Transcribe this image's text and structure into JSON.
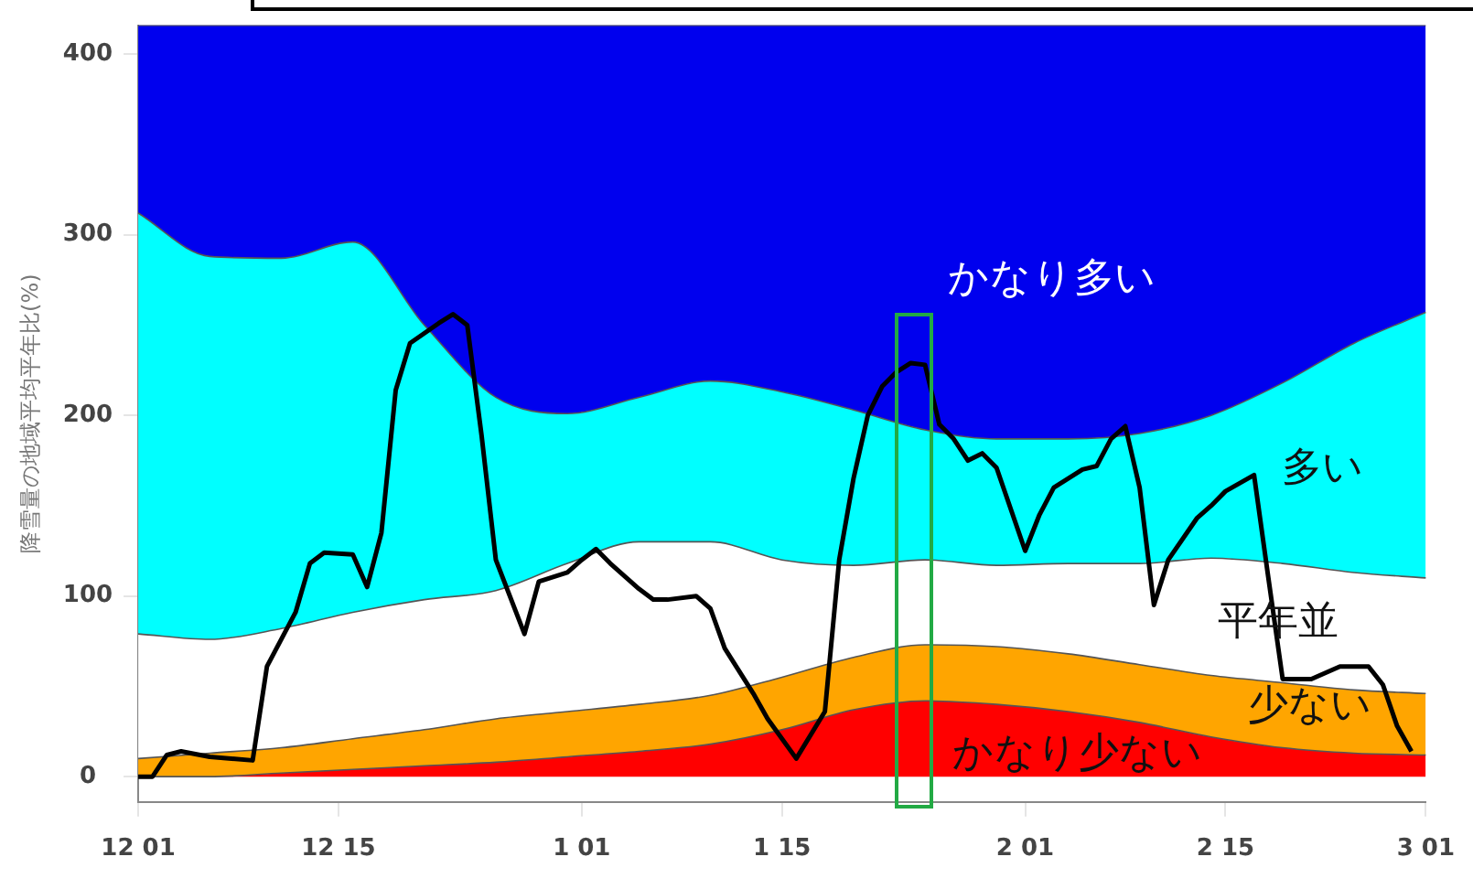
{
  "chart_data": {
    "type": "area",
    "stacked": true,
    "ylabel": "降雪量の地域平均平年比(%)",
    "categories": [
      "12 01",
      null,
      null,
      null,
      null,
      null,
      null,
      null,
      null,
      null,
      null,
      null,
      null,
      null,
      "12 15",
      null,
      null,
      null,
      null,
      null,
      null,
      null,
      null,
      null,
      null,
      null,
      null,
      null,
      null,
      null,
      null,
      "1 01",
      null,
      null,
      null,
      null,
      null,
      null,
      null,
      null,
      null,
      null,
      null,
      null,
      null,
      "1 15",
      null,
      null,
      null,
      null,
      null,
      null,
      null,
      null,
      null,
      null,
      null,
      null,
      null,
      null,
      null,
      null,
      "2 01",
      null,
      null,
      null,
      null,
      null,
      null,
      null,
      null,
      null,
      null,
      null,
      null,
      null,
      "2 15",
      null,
      null,
      null,
      null,
      null,
      null,
      null,
      null,
      null,
      null,
      null,
      null,
      null,
      "3 01"
    ],
    "ylim": [
      -14,
      416
    ],
    "yticks": [
      0,
      100,
      200,
      300,
      400
    ],
    "grid": false,
    "legend": false,
    "series": [
      {
        "name": "かなり少ない",
        "color": "#ff0000",
        "values": [
          0,
          null,
          null,
          null,
          null,
          0,
          null,
          null,
          null,
          null,
          2,
          null,
          null,
          null,
          null,
          4,
          null,
          null,
          null,
          null,
          6,
          null,
          null,
          null,
          null,
          8,
          null,
          null,
          null,
          null,
          11,
          null,
          null,
          null,
          null,
          14,
          null,
          null,
          null,
          null,
          18,
          null,
          null,
          null,
          null,
          26,
          null,
          null,
          null,
          null,
          37,
          null,
          null,
          null,
          null,
          42,
          null,
          null,
          null,
          null,
          40,
          null,
          null,
          null,
          null,
          36,
          null,
          null,
          null,
          null,
          30,
          null,
          null,
          null,
          null,
          22,
          null,
          null,
          null,
          null,
          16,
          null,
          null,
          null,
          null,
          13,
          null,
          null,
          null,
          null,
          12
        ]
      },
      {
        "name": "少ない",
        "color": "#ffa500",
        "values": [
          10,
          null,
          null,
          null,
          null,
          13,
          null,
          null,
          null,
          null,
          14,
          null,
          null,
          null,
          null,
          17,
          null,
          null,
          null,
          null,
          20,
          null,
          null,
          null,
          null,
          24,
          null,
          null,
          null,
          null,
          25,
          null,
          null,
          null,
          null,
          26,
          null,
          null,
          null,
          null,
          27,
          null,
          null,
          null,
          null,
          29,
          null,
          null,
          null,
          null,
          29,
          null,
          null,
          null,
          null,
          31,
          null,
          null,
          null,
          null,
          32,
          null,
          null,
          null,
          null,
          32,
          null,
          null,
          null,
          null,
          32,
          null,
          null,
          null,
          null,
          34,
          null,
          null,
          null,
          null,
          36,
          null,
          null,
          null,
          null,
          35,
          null,
          null,
          null,
          null,
          34
        ]
      },
      {
        "name": "平年並",
        "color": "#ffffff",
        "values": [
          69,
          null,
          null,
          null,
          null,
          63,
          null,
          null,
          null,
          null,
          66,
          null,
          null,
          null,
          null,
          70,
          null,
          null,
          null,
          null,
          72,
          null,
          null,
          null,
          null,
          71,
          null,
          null,
          null,
          null,
          82,
          null,
          null,
          null,
          null,
          90,
          null,
          null,
          null,
          null,
          85,
          null,
          null,
          null,
          null,
          65,
          null,
          null,
          null,
          null,
          51,
          null,
          null,
          null,
          null,
          47,
          null,
          null,
          null,
          null,
          45,
          null,
          null,
          null,
          null,
          50,
          null,
          null,
          null,
          null,
          56,
          null,
          null,
          null,
          null,
          65,
          null,
          null,
          null,
          null,
          66,
          null,
          null,
          null,
          null,
          65,
          null,
          null,
          null,
          null,
          64
        ]
      },
      {
        "name": "多い",
        "color": "#00ffff",
        "values": [
          233,
          null,
          null,
          null,
          null,
          212,
          null,
          null,
          null,
          null,
          205,
          null,
          null,
          null,
          null,
          205,
          null,
          null,
          null,
          null,
          152,
          null,
          null,
          null,
          null,
          107,
          null,
          null,
          null,
          null,
          83,
          null,
          null,
          null,
          null,
          80,
          null,
          null,
          null,
          null,
          89,
          null,
          null,
          null,
          null,
          93,
          null,
          null,
          null,
          null,
          86,
          null,
          null,
          null,
          null,
          72,
          null,
          null,
          null,
          null,
          70,
          null,
          null,
          null,
          null,
          69,
          null,
          null,
          null,
          null,
          72,
          null,
          null,
          null,
          null,
          79,
          null,
          null,
          null,
          null,
          100,
          null,
          null,
          null,
          null,
          127,
          null,
          null,
          null,
          null,
          147
        ]
      },
      {
        "name": "かなり多い",
        "color": "#0000ee",
        "values": [
          104,
          null,
          null,
          null,
          null,
          128,
          null,
          null,
          null,
          null,
          129,
          null,
          null,
          null,
          null,
          120,
          null,
          null,
          null,
          null,
          166,
          null,
          null,
          null,
          null,
          206,
          null,
          null,
          null,
          null,
          215,
          null,
          null,
          null,
          null,
          206,
          null,
          null,
          null,
          null,
          197,
          null,
          null,
          null,
          null,
          203,
          null,
          null,
          null,
          null,
          213,
          null,
          null,
          null,
          null,
          224,
          null,
          null,
          null,
          null,
          229,
          null,
          null,
          null,
          null,
          229,
          null,
          null,
          null,
          null,
          226,
          null,
          null,
          null,
          null,
          216,
          null,
          null,
          null,
          null,
          198,
          null,
          null,
          null,
          null,
          176,
          null,
          null,
          null,
          null,
          159
        ]
      },
      {
        "type": "line",
        "color": "#000000",
        "values": [
          0,
          0,
          12,
          14,
          null,
          11,
          null,
          null,
          9,
          61,
          null,
          91,
          118,
          124,
          null,
          123,
          105,
          135,
          214,
          240,
          null,
          251,
          256,
          250,
          189,
          120,
          null,
          79,
          108,
          null,
          113,
          120,
          126,
          118,
          null,
          104,
          98,
          98,
          null,
          100,
          93,
          71,
          null,
          46,
          32,
          null,
          10,
          null,
          36,
          120,
          165,
          200,
          216,
          224,
          229,
          228,
          195,
          187,
          175,
          179,
          171,
          null,
          125,
          145,
          160,
          null,
          170,
          172,
          187,
          194,
          160,
          95,
          120,
          null,
          143,
          150,
          158,
          null,
          167,
          110,
          54,
          null,
          54,
          null,
          61,
          null,
          61,
          51,
          28,
          14,
          null
        ]
      }
    ]
  }
}
